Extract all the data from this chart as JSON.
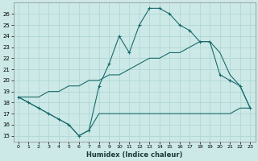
{
  "title": "",
  "xlabel": "Humidex (Indice chaleur)",
  "background_color": "#cce9e7",
  "grid_color": "#aad4d1",
  "line_color": "#1a6b6b",
  "xlim": [
    -0.5,
    23.5
  ],
  "ylim": [
    14.5,
    27.0
  ],
  "yticks": [
    15,
    16,
    17,
    18,
    19,
    20,
    21,
    22,
    23,
    24,
    25,
    26
  ],
  "xticks": [
    0,
    1,
    2,
    3,
    4,
    5,
    6,
    7,
    8,
    9,
    10,
    11,
    12,
    13,
    14,
    15,
    16,
    17,
    18,
    19,
    20,
    21,
    22,
    23
  ],
  "line1_x": [
    0,
    1,
    2,
    3,
    4,
    5,
    6,
    7,
    8,
    9,
    10,
    11,
    12,
    13,
    14,
    15,
    16,
    17,
    18,
    19,
    20,
    21,
    22,
    23
  ],
  "line1_y": [
    18.5,
    18.0,
    17.5,
    17.0,
    16.5,
    16.0,
    15.0,
    15.5,
    17.0,
    17.0,
    17.0,
    17.0,
    17.0,
    17.0,
    17.0,
    17.0,
    17.0,
    17.0,
    17.0,
    17.0,
    17.0,
    17.0,
    17.5,
    17.5
  ],
  "line2_x": [
    0,
    1,
    2,
    3,
    4,
    5,
    6,
    7,
    8,
    9,
    10,
    11,
    12,
    13,
    14,
    15,
    16,
    17,
    18,
    19,
    20,
    21,
    22,
    23
  ],
  "line2_y": [
    18.5,
    18.0,
    17.5,
    17.0,
    16.5,
    16.0,
    15.0,
    15.5,
    19.5,
    21.5,
    24.0,
    22.5,
    25.0,
    26.5,
    26.5,
    26.0,
    25.0,
    24.5,
    23.5,
    23.5,
    20.5,
    20.0,
    19.5,
    17.5
  ],
  "line3_x": [
    0,
    1,
    2,
    3,
    4,
    5,
    6,
    7,
    8,
    9,
    10,
    11,
    12,
    13,
    14,
    15,
    16,
    17,
    18,
    19,
    20,
    21,
    22,
    23
  ],
  "line3_y": [
    18.5,
    18.5,
    18.5,
    19.0,
    19.0,
    19.5,
    19.5,
    20.0,
    20.0,
    20.5,
    20.5,
    21.0,
    21.5,
    22.0,
    22.0,
    22.5,
    22.5,
    23.0,
    23.5,
    23.5,
    22.5,
    20.5,
    19.5,
    17.5
  ]
}
